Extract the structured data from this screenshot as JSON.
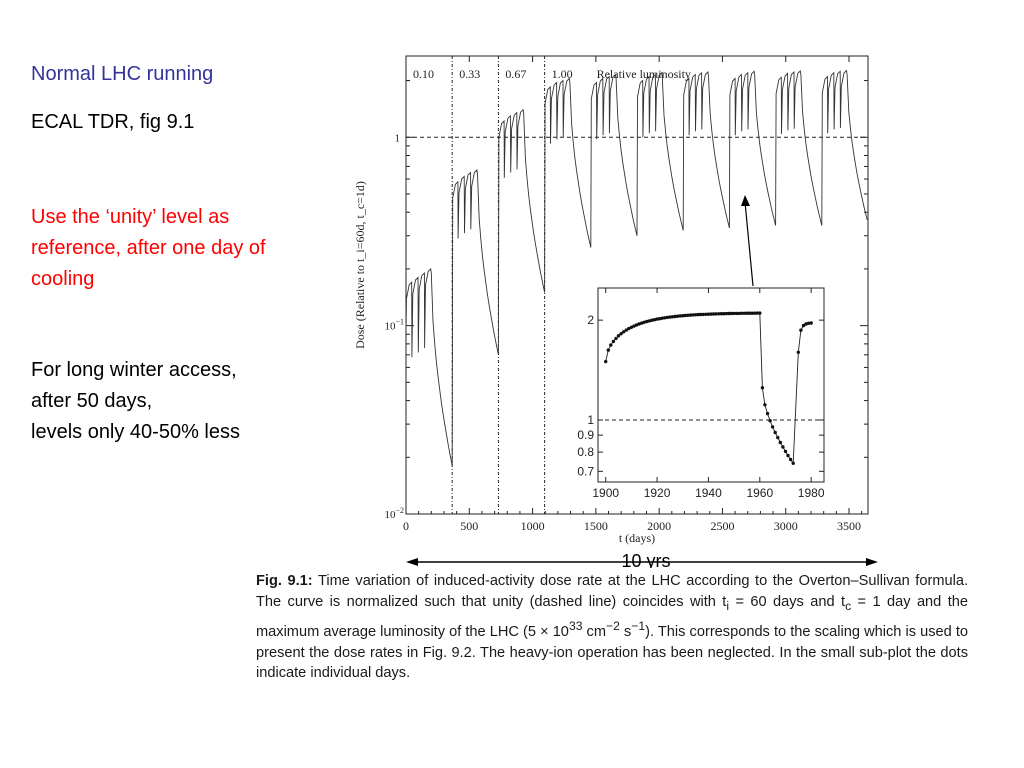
{
  "slide": {
    "title": "Normal LHC running",
    "subtitle": "ECAL TDR, fig 9.1",
    "note_red": "Use the ‘unity’ level as reference, after one day of cooling",
    "note_black_1": "For long winter access,",
    "note_black_2": "after 50 days,",
    "note_black_3": "levels only 40-50% less",
    "span_label": "10 yrs",
    "colors": {
      "title": "#333399",
      "note_red": "#ff0000",
      "text": "#000000"
    }
  },
  "caption": {
    "label": "Fig. 9.1:",
    "p1": " Time variation of induced-activity dose rate at the LHC according to the Overton–Sullivan formula. The curve is normalized such that unity (dashed line) coincides with ",
    "ti_sym": "t",
    "ti_sub": "i",
    "p2": " = 60 days and ",
    "tc_sym": "t",
    "tc_sub": "c",
    "p3": " = 1 day and the maximum average luminosity of the LHC (5 × 10",
    "exp1": "33",
    "p4": " cm",
    "exp2": "−2",
    "p5": " s",
    "exp3": "−1",
    "p6": "). This corresponds to the scaling which is used to present the dose rates in Fig. 9.2. The heavy-ion operation has been neglected. In the small sub-plot the dots indicate individual days."
  },
  "chart_data": [
    {
      "type": "line",
      "xlabel": "t (days)",
      "ylabel": "Dose (Relative to t_i=60d, t_c=1d)",
      "xlim": [
        0,
        3650
      ],
      "ylim": [
        0.01,
        2.7
      ],
      "yscale": "log",
      "xticks": [
        "0",
        "500",
        "1000",
        "1500",
        "2000",
        "2500",
        "3000",
        "3500"
      ],
      "yticks": [
        {
          "value": 0.01,
          "label": "10",
          "exp": "−2"
        },
        {
          "value": 0.1,
          "label": "10",
          "exp": "−1"
        },
        {
          "value": 1,
          "label": "1",
          "exp": ""
        }
      ],
      "reference_line": {
        "y": 1,
        "style": "dashed"
      },
      "period_dividers": [
        365,
        730,
        1095
      ],
      "period_labels": [
        "0.10",
        "0.33",
        "0.67",
        "1.00"
      ],
      "period_legend": "Relative luminosity",
      "cycle_peaks": [
        {
          "start": 0,
          "luminosity": 0.1,
          "peaks": [
            0.17,
            0.18,
            0.19,
            0.2
          ]
        },
        {
          "start": 365,
          "luminosity": 0.33,
          "peaks": [
            0.58,
            0.62,
            0.65,
            0.67
          ]
        },
        {
          "start": 730,
          "luminosity": 0.67,
          "peaks": [
            1.22,
            1.3,
            1.35,
            1.4
          ]
        },
        {
          "start": 1095,
          "luminosity": 1.0,
          "peaks": [
            1.85,
            1.95,
            2.0,
            2.05
          ]
        },
        {
          "start": 1460,
          "luminosity": 1.0,
          "peaks": [
            1.95,
            2.05,
            2.1,
            2.15
          ]
        },
        {
          "start": 1825,
          "luminosity": 1.0,
          "peaks": [
            2.0,
            2.1,
            2.15,
            2.2
          ]
        },
        {
          "start": 2190,
          "luminosity": 1.0,
          "peaks": [
            2.05,
            2.15,
            2.2,
            2.22
          ]
        },
        {
          "start": 2555,
          "luminosity": 1.0,
          "peaks": [
            2.05,
            2.15,
            2.2,
            2.24
          ]
        },
        {
          "start": 2920,
          "luminosity": 1.0,
          "peaks": [
            2.08,
            2.18,
            2.22,
            2.25
          ]
        },
        {
          "start": 3285,
          "luminosity": 1.0,
          "peaks": [
            2.1,
            2.2,
            2.24,
            2.26
          ]
        }
      ],
      "run_length_days": 200,
      "winter_end_values": [
        0.018,
        0.07,
        0.15,
        0.26,
        0.3,
        0.32,
        0.33,
        0.34,
        0.34,
        0.35
      ]
    },
    {
      "type": "scatter",
      "subplot": "inset",
      "xlim": [
        1897,
        1985
      ],
      "ylim": [
        0.65,
        2.5
      ],
      "yscale": "log",
      "xticks": [
        "1900",
        "1920",
        "1940",
        "1960",
        "1980"
      ],
      "yticks": [
        {
          "value": 2,
          "label": "2"
        },
        {
          "value": 1,
          "label": "1"
        },
        {
          "value": 0.9,
          "label": "0.9"
        },
        {
          "value": 0.8,
          "label": "0.8"
        },
        {
          "value": 0.7,
          "label": "0.7"
        }
      ],
      "reference_line": {
        "y": 1,
        "style": "dashed"
      },
      "segments": [
        {
          "x_start": 1900,
          "x_end": 1960,
          "y_start": 1.5,
          "y_end": 2.1,
          "shape": "rise"
        },
        {
          "x_start": 1961,
          "x_end": 1973,
          "y_start": 1.25,
          "y_end": 0.74,
          "shape": "decay"
        },
        {
          "x_start": 1975,
          "x_end": 1980,
          "y_start": 1.6,
          "y_end": 1.96,
          "shape": "rise"
        }
      ]
    }
  ]
}
